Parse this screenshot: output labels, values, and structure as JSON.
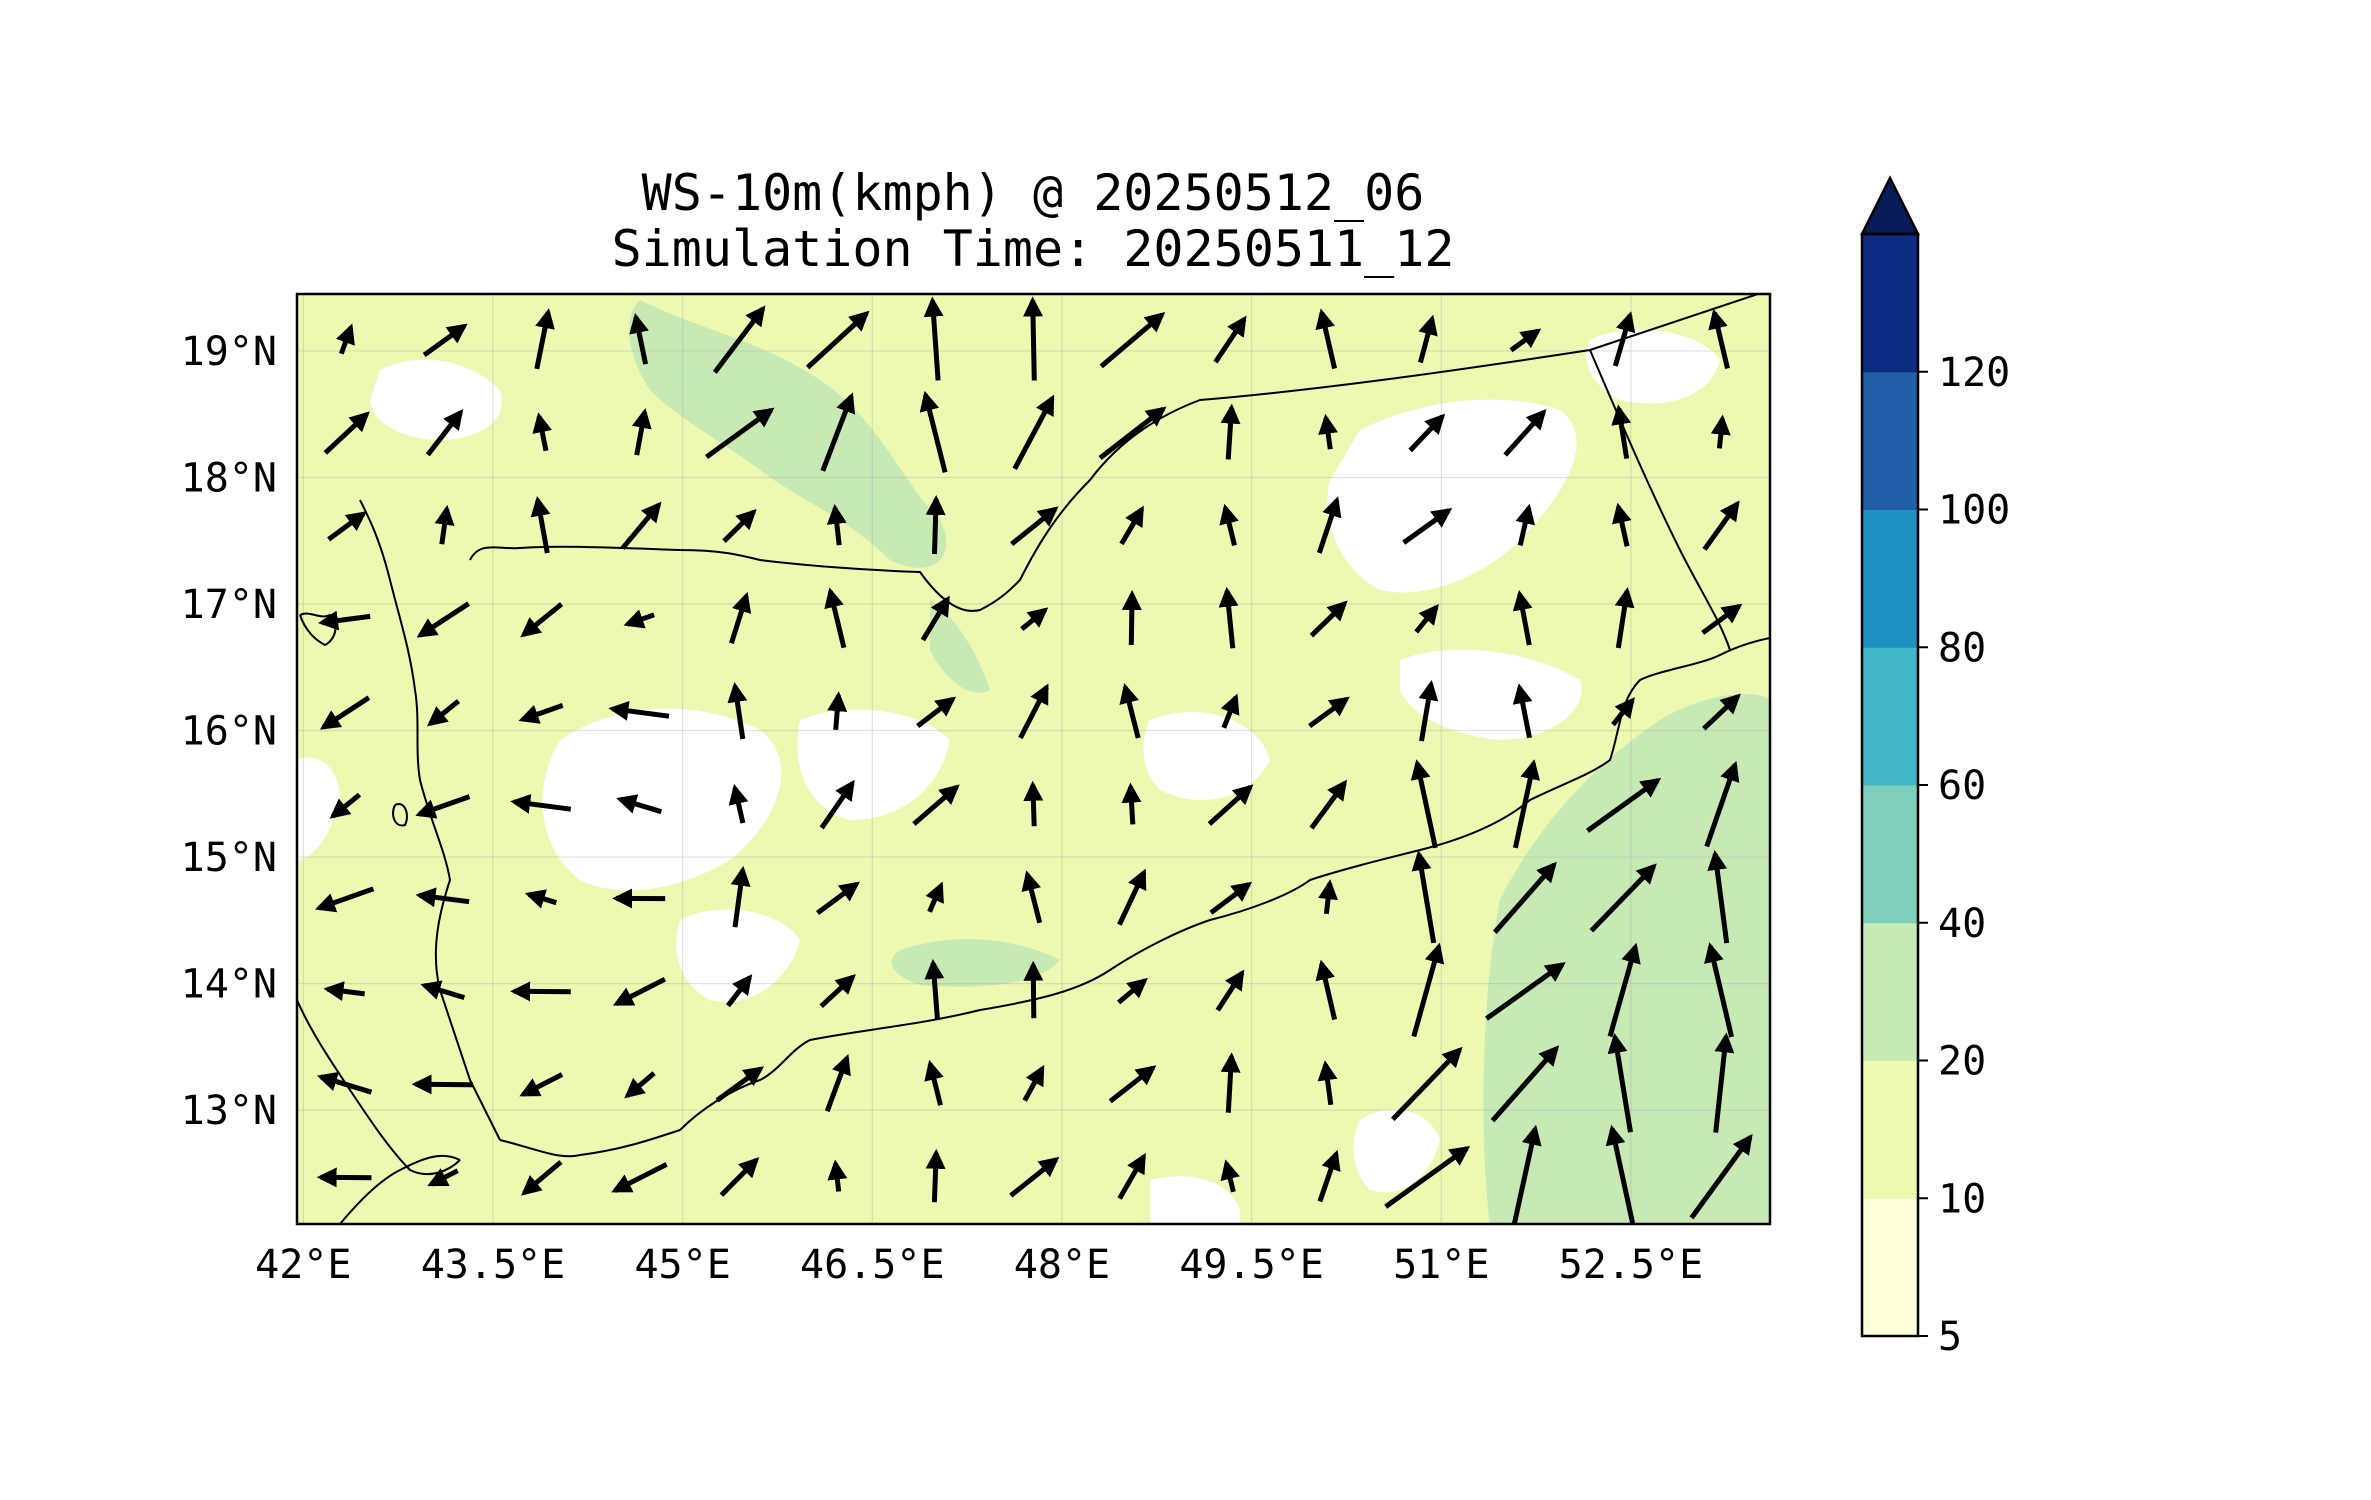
{
  "title": {
    "line1": "WS-10m(kmph) @ 20250512_06",
    "line2": "Simulation Time: 20250511_12"
  },
  "map": {
    "lon_range": [
      41.95,
      53.6
    ],
    "lat_range": [
      12.1,
      19.45
    ],
    "x_ticks": [
      "42°E",
      "43.5°E",
      "45°E",
      "46.5°E",
      "48°E",
      "49.5°E",
      "51°E",
      "52.5°E"
    ],
    "x_tick_values": [
      42,
      43.5,
      45,
      46.5,
      48,
      49.5,
      51,
      52.5
    ],
    "y_ticks": [
      "13°N",
      "14°N",
      "15°N",
      "16°N",
      "17°N",
      "18°N",
      "19°N"
    ],
    "y_tick_values": [
      13,
      14,
      15,
      16,
      17,
      18,
      19
    ],
    "gridlines": true,
    "coastline_color": "#000000",
    "wind_arrow_color": "#000000"
  },
  "colorbar": {
    "levels": [
      "5",
      "10",
      "20",
      "40",
      "60",
      "80",
      "100",
      "120"
    ],
    "colors": [
      "#ffffd9",
      "#edf8b1",
      "#c7e9b4",
      "#7fcdbb",
      "#41b6c4",
      "#1d91c0",
      "#225ea8",
      "#0c2c84"
    ],
    "extend_color": "#081d58",
    "extend": "max"
  },
  "shading": {
    "base_color": "#edf8b1",
    "calm_color": "#ffffd9",
    "strong_color": "#c7e9b4"
  }
}
